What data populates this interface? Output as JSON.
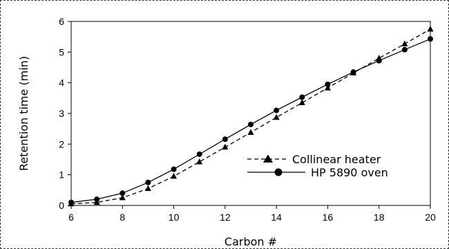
{
  "chart_data": {
    "type": "line",
    "xlabel": "Carbon #",
    "ylabel": "Retention time (min)",
    "xlim": [
      6,
      20
    ],
    "ylim": [
      0,
      6
    ],
    "xticks": [
      6,
      8,
      10,
      12,
      14,
      16,
      18,
      20
    ],
    "yticks": [
      0,
      1,
      2,
      3,
      4,
      5,
      6
    ],
    "grid": false,
    "legend_position": "center-right",
    "series": [
      {
        "name": "Collinear heater",
        "line_style": "dashed",
        "marker": "triangle",
        "color": "#000000",
        "x": [
          6,
          7,
          8,
          9,
          10,
          11,
          12,
          13,
          14,
          15,
          16,
          17,
          18,
          19,
          20
        ],
        "y": [
          0.05,
          0.1,
          0.25,
          0.55,
          0.95,
          1.42,
          1.9,
          2.38,
          2.87,
          3.35,
          3.83,
          4.32,
          4.8,
          5.27,
          5.75
        ]
      },
      {
        "name": "HP 5890 oven",
        "line_style": "solid",
        "marker": "circle",
        "color": "#000000",
        "x": [
          6,
          7,
          8,
          9,
          10,
          11,
          12,
          13,
          14,
          15,
          16,
          17,
          18,
          19,
          20
        ],
        "y": [
          0.1,
          0.2,
          0.4,
          0.75,
          1.18,
          1.67,
          2.16,
          2.64,
          3.1,
          3.53,
          3.95,
          4.35,
          4.72,
          5.08,
          5.43
        ]
      }
    ]
  }
}
